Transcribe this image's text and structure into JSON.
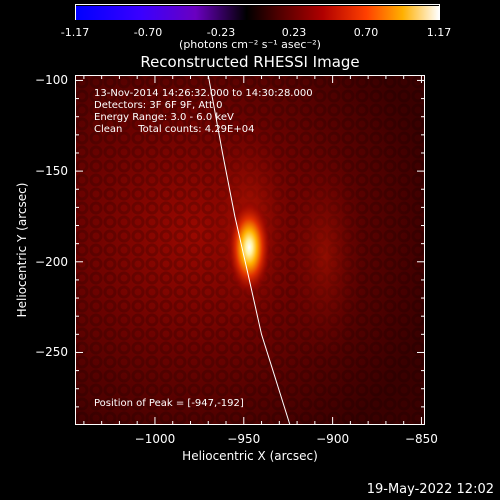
{
  "colorbar": {
    "ticks": [
      "-1.17",
      "-0.70",
      "-0.23",
      "0.23",
      "0.70",
      "1.17"
    ],
    "units": "(photons cm⁻² s⁻¹ asec⁻²)"
  },
  "info": {
    "line1": "13-Nov-2014 14:26:32.000 to 14:30:28.000",
    "line2": "Detectors: 3F 6F 9F, Att 0",
    "line3": "Energy Range: 3.0 - 6.0 keV",
    "line4": "Clean     Total counts: 4.29E+04"
  },
  "peak_label": "Position of Peak = [-947,-192]",
  "footer_date": "19-May-2022 12:02",
  "chart_data": {
    "type": "heatmap",
    "title": "Reconstructed RHESSI Image",
    "xlabel": "Heliocentric X (arcsec)",
    "ylabel": "Heliocentric Y (arcsec)",
    "xlim": [
      -1045,
      -848
    ],
    "ylim": [
      -290,
      -97
    ],
    "xticks": [
      -1000,
      -950,
      -900,
      -850
    ],
    "yticks": [
      -100,
      -150,
      -200,
      -250
    ],
    "xtick_labels": [
      "−1000",
      "−950",
      "−900",
      "−850"
    ],
    "ytick_labels": [
      "−100",
      "−150",
      "−200",
      "−250"
    ],
    "colorscale_range": [
      -1.17,
      1.17
    ],
    "peak": {
      "x": -947,
      "y": -192
    },
    "limb_curve": {
      "x": [
        -970,
        -962,
        -955,
        -948,
        -940,
        -932,
        -924
      ],
      "y": [
        -97,
        -140,
        -175,
        -205,
        -240,
        -265,
        -290
      ]
    },
    "colors": {
      "low": "#0000ff",
      "mid": "#000000",
      "high": "#ffffff"
    }
  }
}
